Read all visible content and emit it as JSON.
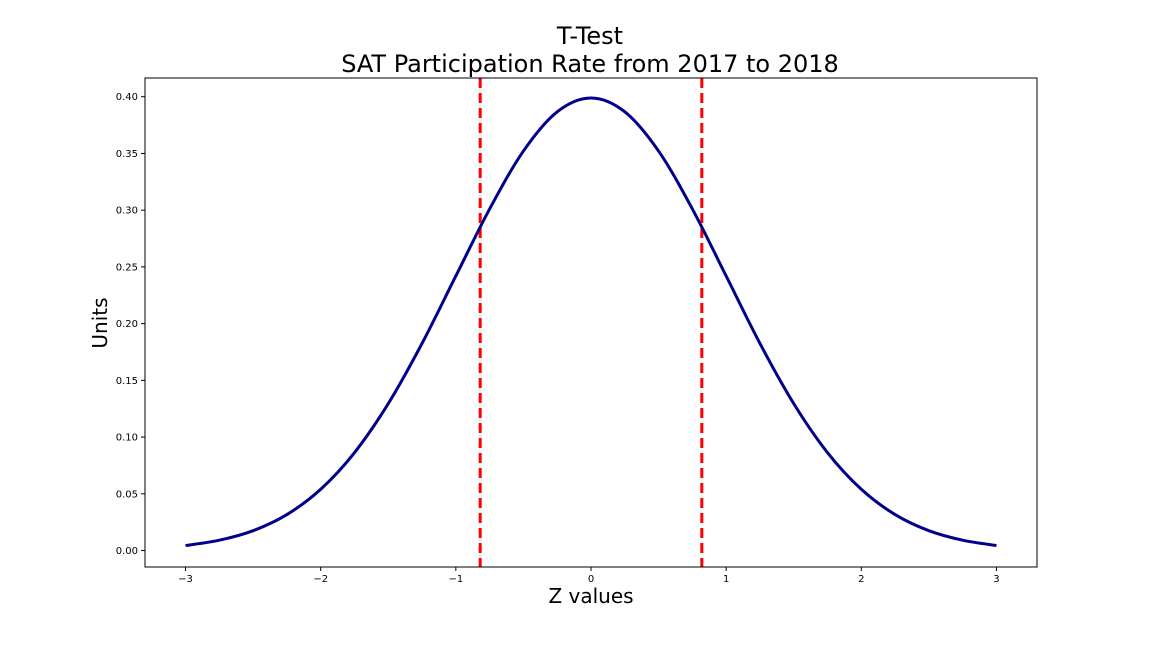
{
  "chart_data": {
    "type": "line",
    "title_line1": "T-Test",
    "title_line2": "SAT Participation Rate from 2017 to 2018",
    "xlabel": "Z values",
    "ylabel": "Units",
    "xlim": [
      -3.3,
      3.3
    ],
    "ylim": [
      -0.0145,
      0.4165
    ],
    "x_ticks": [
      -3,
      -2,
      -1,
      0,
      1,
      2,
      3
    ],
    "x_tick_labels": [
      "−3",
      "−2",
      "−1",
      "0",
      "1",
      "2",
      "3"
    ],
    "y_ticks": [
      0.0,
      0.05,
      0.1,
      0.15,
      0.2,
      0.25,
      0.3,
      0.35,
      0.4
    ],
    "y_tick_labels": [
      "0.00",
      "0.05",
      "0.10",
      "0.15",
      "0.20",
      "0.25",
      "0.30",
      "0.35",
      "0.40"
    ],
    "grid": false,
    "series": [
      {
        "color": "#00008b",
        "x": [
          -3.0,
          -2.75,
          -2.5,
          -2.25,
          -2.0,
          -1.75,
          -1.5,
          -1.25,
          -1.0,
          -0.75,
          -0.5,
          -0.25,
          0.0,
          0.25,
          0.5,
          0.75,
          1.0,
          1.25,
          1.5,
          1.75,
          2.0,
          2.25,
          2.5,
          2.75,
          3.0
        ],
        "y": [
          0.0044,
          0.0091,
          0.0175,
          0.0317,
          0.054,
          0.0863,
          0.1295,
          0.1826,
          0.242,
          0.3011,
          0.3521,
          0.3867,
          0.3989,
          0.3867,
          0.3521,
          0.3011,
          0.242,
          0.1826,
          0.1295,
          0.0863,
          0.054,
          0.0317,
          0.0175,
          0.0091,
          0.0044
        ]
      }
    ],
    "vlines": [
      {
        "x": -0.82,
        "color": "#ff0000",
        "style": "dashed"
      },
      {
        "x": 0.82,
        "color": "#ff0000",
        "style": "dashed"
      }
    ]
  }
}
